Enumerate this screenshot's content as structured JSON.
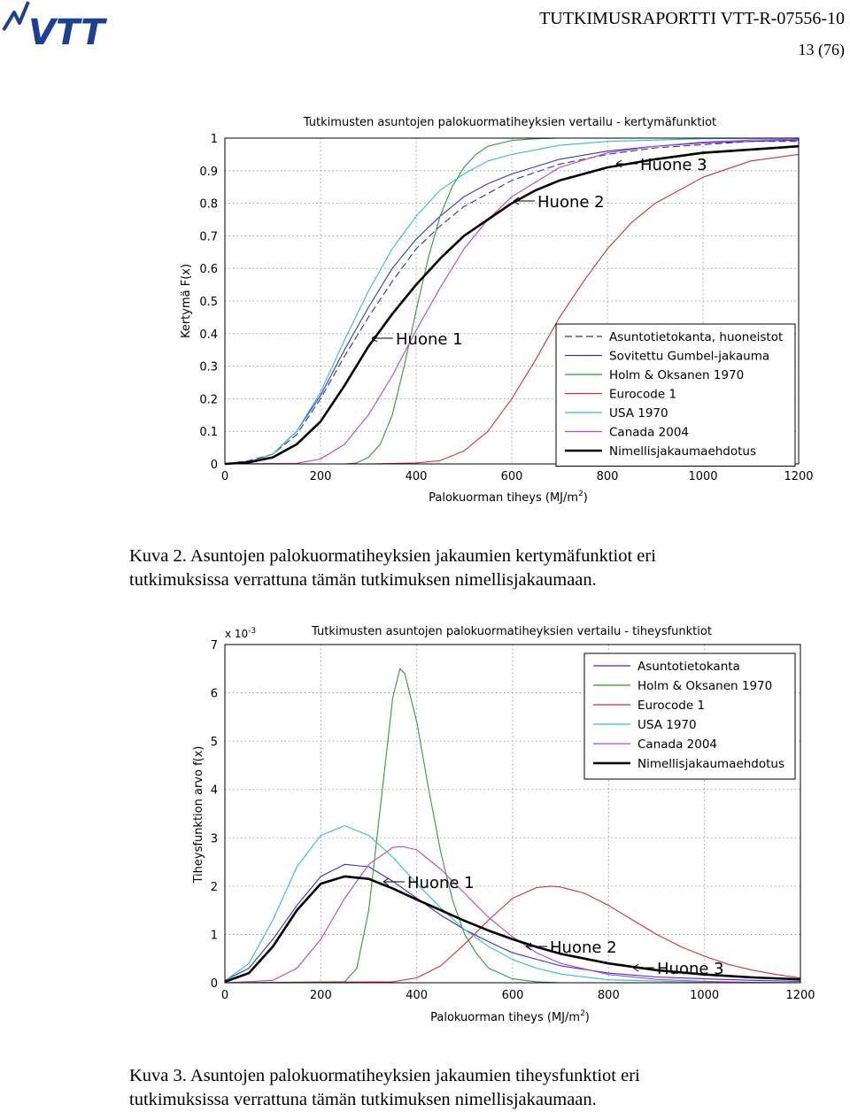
{
  "header": {
    "logo_text": "VTT",
    "report_id": "TUTKIMUSRAPORTTI VTT-R-07556-10",
    "page_number": "13 (76)"
  },
  "colors": {
    "logo": "#1f3f8f",
    "Asuntotietokanta": "#333399",
    "Gumbel": "#3333cc",
    "Holm": "#339933",
    "Eurocode": "#cc3333",
    "USA": "#33bbcc",
    "Canada": "#bb44bb",
    "Nimellis": "#000000"
  },
  "chart_data": [
    {
      "type": "line",
      "title": "Tutkimusten asuntojen palokuormatiheyksien vertailu - kertymäfunktiot",
      "xlabel": "Palokuorman tiheys (MJ/m",
      "xlabel_sup": "2",
      "xlabel_end": ")",
      "ylabel": "Kertymä F(x)",
      "xlim": [
        0,
        1200
      ],
      "ylim": [
        0,
        1
      ],
      "grid": true,
      "legend_position": "bottom-right",
      "xticks": [
        "0",
        "200",
        "400",
        "600",
        "800",
        "1000",
        "1200"
      ],
      "yticks": [
        "0",
        "0.1",
        "0.2",
        "0.3",
        "0.4",
        "0.5",
        "0.6",
        "0.7",
        "0.8",
        "0.9",
        "1"
      ],
      "annotations": [
        "Huone 1",
        "Huone 2",
        "Huone 3"
      ],
      "series": [
        {
          "name": "Asuntotietokanta, huoneistot",
          "x": [
            0,
            50,
            100,
            150,
            200,
            250,
            300,
            350,
            400,
            450,
            500,
            550,
            600,
            700,
            800,
            900,
            1000,
            1100,
            1200
          ],
          "y": [
            0,
            0.01,
            0.03,
            0.09,
            0.2,
            0.33,
            0.45,
            0.56,
            0.66,
            0.73,
            0.79,
            0.83,
            0.87,
            0.92,
            0.95,
            0.97,
            0.98,
            0.99,
            0.99
          ]
        },
        {
          "name": "Sovitettu Gumbel-jakauma",
          "x": [
            0,
            50,
            100,
            150,
            200,
            250,
            300,
            350,
            400,
            450,
            500,
            550,
            600,
            700,
            800,
            900,
            1000,
            1100,
            1200
          ],
          "y": [
            0,
            0.005,
            0.03,
            0.1,
            0.21,
            0.35,
            0.48,
            0.6,
            0.69,
            0.76,
            0.82,
            0.86,
            0.89,
            0.935,
            0.96,
            0.975,
            0.985,
            0.99,
            0.994
          ]
        },
        {
          "name": "Holm & Oksanen 1970",
          "x": [
            0,
            250,
            275,
            300,
            325,
            350,
            375,
            400,
            425,
            450,
            475,
            500,
            525,
            550,
            600,
            650,
            700,
            800,
            1000,
            1200
          ],
          "y": [
            0,
            0,
            0.003,
            0.02,
            0.06,
            0.15,
            0.3,
            0.47,
            0.63,
            0.76,
            0.85,
            0.91,
            0.95,
            0.975,
            0.993,
            0.998,
            1,
            1,
            1,
            1
          ]
        },
        {
          "name": "Eurocode 1",
          "x": [
            0,
            300,
            400,
            450,
            500,
            550,
            600,
            650,
            700,
            750,
            800,
            850,
            900,
            1000,
            1100,
            1200
          ],
          "y": [
            0,
            0,
            0.003,
            0.01,
            0.04,
            0.1,
            0.2,
            0.32,
            0.45,
            0.56,
            0.66,
            0.74,
            0.8,
            0.88,
            0.93,
            0.95
          ]
        },
        {
          "name": "USA 1970",
          "x": [
            0,
            50,
            100,
            150,
            200,
            250,
            300,
            350,
            400,
            450,
            500,
            550,
            600,
            700,
            800,
            1000,
            1200
          ],
          "y": [
            0,
            0.006,
            0.03,
            0.1,
            0.22,
            0.38,
            0.53,
            0.66,
            0.76,
            0.84,
            0.89,
            0.93,
            0.95,
            0.978,
            0.99,
            0.998,
            1
          ]
        },
        {
          "name": "Canada 2004",
          "x": [
            0,
            150,
            200,
            250,
            300,
            350,
            400,
            450,
            500,
            550,
            600,
            700,
            800,
            900,
            1000,
            1100,
            1200
          ],
          "y": [
            0,
            0.002,
            0.015,
            0.06,
            0.15,
            0.27,
            0.41,
            0.54,
            0.66,
            0.75,
            0.82,
            0.91,
            0.955,
            0.975,
            0.988,
            0.994,
            0.997
          ]
        },
        {
          "name": "Nimellisjakaumaehdotus",
          "x": [
            0,
            50,
            100,
            150,
            200,
            250,
            300,
            350,
            400,
            450,
            500,
            550,
            600,
            650,
            700,
            800,
            900,
            1000,
            1100,
            1200
          ],
          "y": [
            0,
            0.005,
            0.02,
            0.06,
            0.13,
            0.24,
            0.36,
            0.46,
            0.55,
            0.63,
            0.7,
            0.75,
            0.8,
            0.84,
            0.87,
            0.91,
            0.935,
            0.955,
            0.965,
            0.975
          ]
        }
      ]
    },
    {
      "type": "line",
      "title": "Tutkimusten asuntojen palokuormatiheyksien vertailu - tiheysfunktiot",
      "xlabel": "Palokuorman tiheys (MJ/m",
      "xlabel_sup": "2",
      "xlabel_end": ")",
      "ylabel": "Tiheysfunktion arvo f(x)",
      "y_multiplier": "x 10",
      "y_multiplier_exp": "-3",
      "xlim": [
        0,
        1200
      ],
      "ylim": [
        0,
        7
      ],
      "grid": true,
      "legend_position": "top-right",
      "xticks": [
        "0",
        "200",
        "400",
        "600",
        "800",
        "1000",
        "1200"
      ],
      "yticks": [
        "0",
        "1",
        "2",
        "3",
        "4",
        "5",
        "6",
        "7"
      ],
      "annotations": [
        "Huone 1",
        "Huone 2",
        "Huone 3"
      ],
      "series": [
        {
          "name": "Asuntotietokanta",
          "x": [
            0,
            50,
            100,
            150,
            200,
            250,
            300,
            350,
            400,
            450,
            500,
            550,
            600,
            700,
            800,
            900,
            1000,
            1100,
            1200
          ],
          "y": [
            0.05,
            0.3,
            0.9,
            1.6,
            2.2,
            2.45,
            2.4,
            2.1,
            1.75,
            1.4,
            1.1,
            0.85,
            0.62,
            0.35,
            0.2,
            0.12,
            0.08,
            0.05,
            0.03
          ]
        },
        {
          "name": "Holm & Oksanen 1970",
          "x": [
            0,
            250,
            275,
            300,
            325,
            350,
            365,
            375,
            400,
            425,
            450,
            475,
            500,
            525,
            550,
            600,
            650,
            700,
            1200
          ],
          "y": [
            0,
            0.02,
            0.3,
            1.5,
            3.7,
            5.9,
            6.5,
            6.4,
            5.4,
            4.0,
            2.7,
            1.7,
            1.0,
            0.6,
            0.3,
            0.08,
            0.02,
            0,
            0
          ]
        },
        {
          "name": "Eurocode 1",
          "x": [
            0,
            350,
            400,
            450,
            500,
            550,
            600,
            650,
            680,
            700,
            750,
            800,
            850,
            900,
            950,
            1000,
            1050,
            1100,
            1150,
            1200
          ],
          "y": [
            0,
            0.02,
            0.1,
            0.35,
            0.8,
            1.3,
            1.75,
            1.97,
            2.0,
            1.98,
            1.85,
            1.6,
            1.3,
            1.0,
            0.75,
            0.55,
            0.38,
            0.26,
            0.17,
            0.1
          ]
        },
        {
          "name": "USA 1970",
          "x": [
            0,
            50,
            100,
            150,
            200,
            250,
            300,
            350,
            400,
            450,
            500,
            550,
            600,
            650,
            700,
            800,
            1000,
            1200
          ],
          "y": [
            0.04,
            0.4,
            1.3,
            2.4,
            3.05,
            3.25,
            3.05,
            2.6,
            2.05,
            1.55,
            1.1,
            0.75,
            0.48,
            0.3,
            0.18,
            0.06,
            0.01,
            0
          ]
        },
        {
          "name": "Canada 2004",
          "x": [
            0,
            100,
            150,
            200,
            250,
            300,
            350,
            370,
            400,
            450,
            500,
            550,
            600,
            650,
            700,
            800,
            900,
            1000,
            1100,
            1200
          ],
          "y": [
            0,
            0.05,
            0.3,
            0.9,
            1.75,
            2.45,
            2.8,
            2.82,
            2.75,
            2.35,
            1.85,
            1.35,
            0.95,
            0.62,
            0.4,
            0.17,
            0.07,
            0.03,
            0.01,
            0
          ]
        },
        {
          "name": "Nimellisjakaumaehdotus",
          "x": [
            0,
            50,
            100,
            150,
            200,
            250,
            300,
            350,
            400,
            450,
            500,
            550,
            600,
            650,
            700,
            800,
            900,
            1000,
            1100,
            1200
          ],
          "y": [
            0.02,
            0.2,
            0.75,
            1.5,
            2.05,
            2.2,
            2.15,
            1.95,
            1.72,
            1.5,
            1.28,
            1.08,
            0.9,
            0.74,
            0.6,
            0.4,
            0.26,
            0.17,
            0.11,
            0.07
          ]
        }
      ]
    }
  ],
  "captions": {
    "fig2_line1": "Kuva 2. Asuntojen palokuormatiheyksien jakaumien kertymäfunktiot eri",
    "fig2_line2": "tutkimuksissa verrattuna tämän tutkimuksen nimellisjakaumaan.",
    "fig3_line1": "Kuva 3. Asuntojen palokuormatiheyksien jakaumien tiheysfunktiot eri",
    "fig3_line2": "tutkimuksissa verrattuna tämän tutkimuksen nimellisjakaumaan."
  }
}
